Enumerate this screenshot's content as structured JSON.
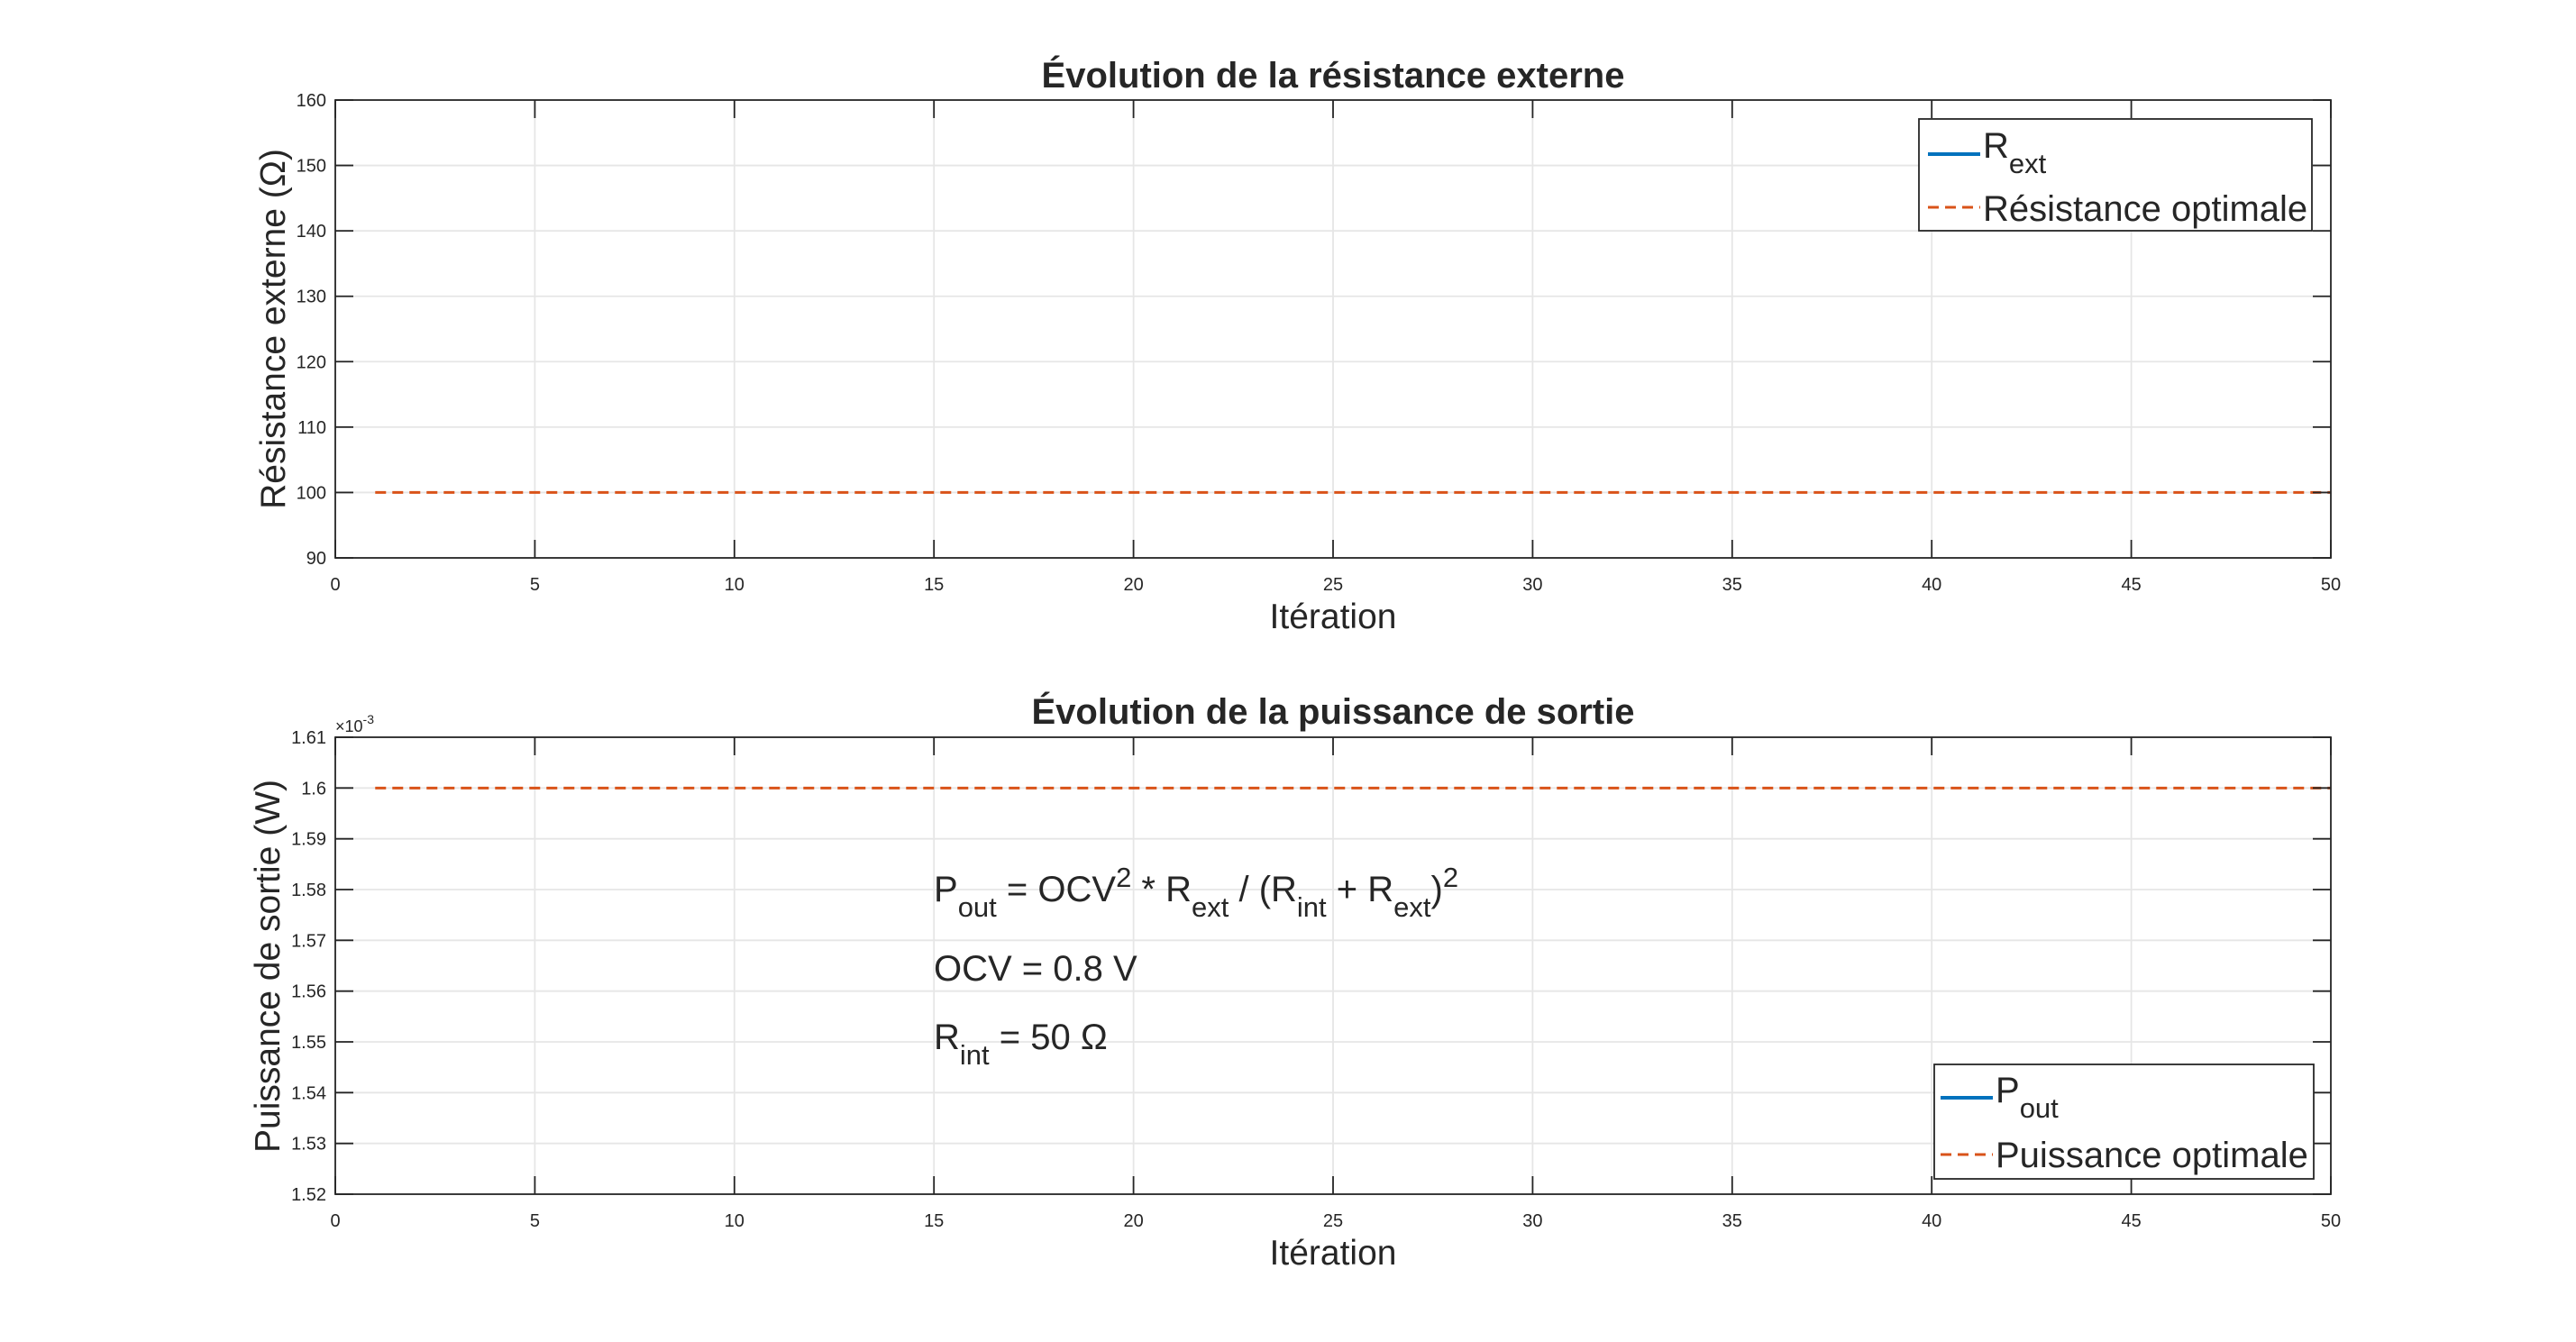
{
  "colors": {
    "series_rext": "#0072BD",
    "series_optimal": "#D95319",
    "axis": "#262626",
    "grid": "#e6e6e6"
  },
  "chart_data": [
    {
      "type": "line",
      "title": "Évolution de la résistance externe",
      "xlabel": "Itération",
      "ylabel": "Résistance externe (Ω)",
      "xlim": [
        0,
        50
      ],
      "ylim": [
        90,
        160
      ],
      "xticks": [
        0,
        5,
        10,
        15,
        20,
        25,
        30,
        35,
        40,
        45,
        50
      ],
      "yticks": [
        90,
        100,
        110,
        120,
        130,
        140,
        150,
        160
      ],
      "ytick_labels": [
        "90",
        "100",
        "110",
        "120",
        "130",
        "140",
        "150",
        "160"
      ],
      "grid": true,
      "legend_position": "top-right",
      "series": [
        {
          "name": "R",
          "name_sub": "ext",
          "style": "solid",
          "color": "#0072BD",
          "x": [
            1,
            50
          ],
          "y": [
            null,
            null
          ]
        },
        {
          "name": "Résistance optimale",
          "style": "dashed",
          "color": "#D95319",
          "x": [
            1,
            50
          ],
          "y": [
            100,
            100
          ]
        }
      ]
    },
    {
      "type": "line",
      "title": "Évolution de la puissance de sortie",
      "xlabel": "Itération",
      "ylabel": "Puissance de sortie (W)",
      "xlim": [
        0,
        50
      ],
      "ylim": [
        0.00152,
        0.00161
      ],
      "exponent_label": "×10",
      "exponent_power": "-3",
      "xticks": [
        0,
        5,
        10,
        15,
        20,
        25,
        30,
        35,
        40,
        45,
        50
      ],
      "yticks": [
        0.00152,
        0.00153,
        0.00154,
        0.00155,
        0.00156,
        0.00157,
        0.00158,
        0.00159,
        0.0016,
        0.00161
      ],
      "ytick_labels": [
        "1.52",
        "1.53",
        "1.54",
        "1.55",
        "1.56",
        "1.57",
        "1.58",
        "1.59",
        "1.6",
        "1.61"
      ],
      "grid": true,
      "legend_position": "bottom-right",
      "series": [
        {
          "name": "P",
          "name_sub": "out",
          "style": "solid",
          "color": "#0072BD",
          "x": [
            1,
            50
          ],
          "y": [
            null,
            null
          ]
        },
        {
          "name": "Puissance optimale",
          "style": "dashed",
          "color": "#D95319",
          "x": [
            1,
            50
          ],
          "y": [
            0.0016,
            0.0016
          ]
        }
      ],
      "annotations": {
        "formula": {
          "p": "P",
          "p_sub": "out",
          "eq": " = OCV",
          "sup1": "2",
          "mul": " * R",
          "rext_sub": "ext",
          "div": " / (R",
          "rint_sub": "int",
          "plus": " + R",
          "rext_sub2": "ext",
          "close": ")",
          "sup2": "2"
        },
        "ocv": "OCV = 0.8 V",
        "rint": {
          "r": "R",
          "sub": "int",
          "rest": " = 50 Ω"
        }
      }
    }
  ]
}
